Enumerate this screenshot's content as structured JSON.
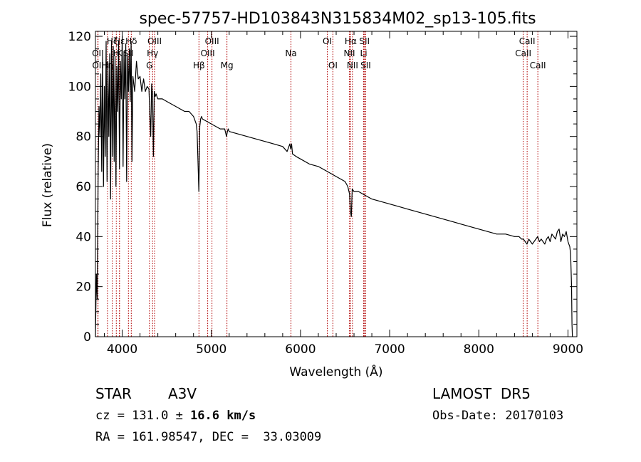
{
  "chart_data": {
    "type": "line",
    "title": "spec-57757-HD103843N315834M02_sp13-105.fits",
    "xlabel": "Wavelength (Å)",
    "ylabel": "Flux (relative)",
    "xlim": [
      3700,
      9100
    ],
    "ylim": [
      0,
      122
    ],
    "xticks": [
      4000,
      5000,
      6000,
      7000,
      8000,
      9000
    ],
    "yticks": [
      0,
      20,
      40,
      60,
      80,
      100,
      120
    ],
    "grid": false,
    "series": [
      {
        "color": "#000000",
        "x": [
          3700,
          3710,
          3720,
          3730,
          3740,
          3750,
          3760,
          3770,
          3780,
          3790,
          3800,
          3810,
          3820,
          3830,
          3840,
          3850,
          3860,
          3870,
          3880,
          3890,
          3900,
          3910,
          3920,
          3930,
          3940,
          3950,
          3960,
          3970,
          3980,
          3990,
          4000,
          4010,
          4020,
          4030,
          4040,
          4050,
          4060,
          4070,
          4080,
          4090,
          4100,
          4110,
          4120,
          4140,
          4160,
          4180,
          4200,
          4220,
          4240,
          4260,
          4280,
          4300,
          4320,
          4330,
          4340,
          4350,
          4360,
          4370,
          4380,
          4400,
          4420,
          4450,
          4500,
          4550,
          4600,
          4650,
          4700,
          4750,
          4800,
          4830,
          4840,
          4850,
          4860,
          4870,
          4880,
          4890,
          4900,
          4950,
          5000,
          5050,
          5100,
          5150,
          5170,
          5180,
          5190,
          5200,
          5300,
          5400,
          5500,
          5600,
          5700,
          5800,
          5850,
          5880,
          5890,
          5900,
          5910,
          5950,
          6000,
          6100,
          6200,
          6300,
          6350,
          6400,
          6450,
          6500,
          6530,
          6550,
          6560,
          6570,
          6580,
          6600,
          6650,
          6700,
          6750,
          6800,
          6900,
          7000,
          7100,
          7200,
          7300,
          7400,
          7500,
          7600,
          7700,
          7800,
          7900,
          8000,
          8100,
          8200,
          8300,
          8400,
          8450,
          8480,
          8500,
          8520,
          8540,
          8560,
          8580,
          8600,
          8620,
          8640,
          8660,
          8680,
          8700,
          8720,
          8740,
          8760,
          8780,
          8800,
          8820,
          8840,
          8860,
          8880,
          8900,
          8920,
          8940,
          8960,
          8980,
          9000,
          9010,
          9020,
          9030,
          9040,
          9045,
          9050
        ],
        "y": [
          0,
          25,
          15,
          65,
          92,
          80,
          105,
          66,
          112,
          60,
          100,
          72,
          118,
          62,
          110,
          80,
          113,
          55,
          118,
          72,
          116,
          70,
          112,
          60,
          108,
          90,
          118,
          67,
          110,
          95,
          120,
          68,
          114,
          95,
          117,
          62,
          112,
          98,
          115,
          94,
          118,
          70,
          104,
          98,
          110,
          103,
          104,
          98,
          103,
          98,
          100,
          99,
          80,
          101,
          97,
          72,
          98,
          96,
          97,
          95,
          95,
          95,
          94,
          93,
          92,
          91,
          90,
          90,
          88,
          85,
          82,
          70,
          58,
          84,
          87,
          88,
          87,
          86,
          85,
          84,
          83,
          83,
          80,
          82,
          83,
          82,
          81,
          80,
          79,
          78,
          77,
          76,
          74,
          77,
          75,
          77,
          73,
          72,
          71,
          69,
          68,
          66,
          65,
          64,
          63,
          62,
          60,
          57,
          50,
          48,
          59,
          58,
          58,
          57,
          56,
          55,
          54,
          53,
          52,
          51,
          50,
          49,
          48,
          47,
          46,
          45,
          44,
          43,
          42,
          41,
          41,
          40,
          40,
          39,
          39,
          38,
          37,
          39,
          38,
          37,
          38,
          39,
          40,
          38,
          39,
          38,
          37,
          39,
          40,
          38,
          41,
          40,
          39,
          42,
          43,
          38,
          41,
          40,
          42,
          38,
          37,
          36,
          33,
          20,
          5,
          0
        ]
      }
    ],
    "lines": [
      {
        "label": "Hε",
        "x": 3970,
        "row": 1
      },
      {
        "label": "OII",
        "x": 3727,
        "row": 2
      },
      {
        "label": "OII",
        "x": 3729,
        "row": 3
      },
      {
        "label": "Hη",
        "x": 3835,
        "row": 3
      },
      {
        "label": "Hζ",
        "x": 3889,
        "row": 1
      },
      {
        "label": "H",
        "x": 3934,
        "row": 2
      },
      {
        "label": "K",
        "x": 3969,
        "row": 2
      },
      {
        "label": "SII",
        "x": 4070,
        "row": 2
      },
      {
        "label": "Hδ",
        "x": 4102,
        "row": 1
      },
      {
        "label": "OIII",
        "x": 4363,
        "row": 1
      },
      {
        "label": "Hγ",
        "x": 4341,
        "row": 2
      },
      {
        "label": "G",
        "x": 4305,
        "row": 3
      },
      {
        "label": "Hβ",
        "x": 4861,
        "row": 3
      },
      {
        "label": "OIII",
        "x": 5007,
        "row": 1
      },
      {
        "label": "OIII",
        "x": 4959,
        "row": 2
      },
      {
        "label": "Mg",
        "x": 5175,
        "row": 3
      },
      {
        "label": "Na",
        "x": 5893,
        "row": 2
      },
      {
        "label": "OI",
        "x": 6300,
        "row": 1
      },
      {
        "label": "OI",
        "x": 6363,
        "row": 3
      },
      {
        "label": "Hα",
        "x": 6563,
        "row": 1
      },
      {
        "label": "NII",
        "x": 6548,
        "row": 2
      },
      {
        "label": "NII",
        "x": 6583,
        "row": 3
      },
      {
        "label": "SII",
        "x": 6717,
        "row": 1
      },
      {
        "label": "Li",
        "x": 6708,
        "row": 2
      },
      {
        "label": "SII",
        "x": 6731,
        "row": 3
      },
      {
        "label": "CaII",
        "x": 8542,
        "row": 1
      },
      {
        "label": "CaII",
        "x": 8498,
        "row": 2
      },
      {
        "label": "CaII",
        "x": 8662,
        "row": 3
      }
    ]
  },
  "info": {
    "object_type": "STAR",
    "subclass": "A3V",
    "survey": "LAMOST  DR5",
    "cz_prefix": "cz = 131.0 ± ",
    "cz_error": "16.6 km/s",
    "obs_date": "Obs-Date: 20170103",
    "coords": "RA = 161.98547, DEC =  33.03009"
  },
  "colors": {
    "spectrum": "#000000",
    "line_marker": "#b00000",
    "axes": "#000000"
  }
}
